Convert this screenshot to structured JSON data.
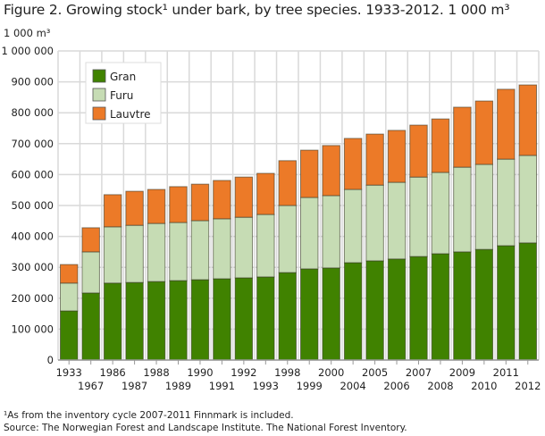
{
  "chart_data": {
    "type": "bar",
    "stacked": true,
    "title": "Figure 2. Growing stock¹ under bark, by tree species. 1933-2012. 1 000 m³",
    "ylabel": "1 000 m³",
    "xlabel": "",
    "ylim": [
      0,
      1000000
    ],
    "yticks": [
      0,
      100000,
      200000,
      300000,
      400000,
      500000,
      600000,
      700000,
      800000,
      900000,
      1000000
    ],
    "ytick_labels": [
      "0",
      "100 000",
      "200 000",
      "300 000",
      "400 000",
      "500 000",
      "600 000",
      "700 000",
      "800 000",
      "900 000",
      "1 000 000"
    ],
    "grid": true,
    "legend_position": "top-left",
    "categories": [
      "1933",
      "1967",
      "1986",
      "1987",
      "1988",
      "1989",
      "1990",
      "1991",
      "1992",
      "1993",
      "1998",
      "1999",
      "2000",
      "2004",
      "2005",
      "2006",
      "2007",
      "2008",
      "2009",
      "2010",
      "2011",
      "2012"
    ],
    "series": [
      {
        "name": "Gran",
        "color": "#408200",
        "values": [
          159000,
          217000,
          249000,
          251000,
          254000,
          257000,
          260000,
          263000,
          266000,
          269000,
          283000,
          295000,
          298000,
          315000,
          321000,
          327000,
          335000,
          344000,
          350000,
          358000,
          370000,
          379000
        ]
      },
      {
        "name": "Furu",
        "color": "#c6dcb4",
        "values": [
          90000,
          133000,
          182000,
          185000,
          188000,
          188000,
          191000,
          194000,
          196000,
          202000,
          217000,
          231000,
          234000,
          237000,
          245000,
          248000,
          257000,
          263000,
          274000,
          275000,
          280000,
          283000
        ]
      },
      {
        "name": "Lauvtre",
        "color": "#ec7a28",
        "values": [
          60000,
          78000,
          104000,
          110000,
          110000,
          116000,
          118000,
          124000,
          130000,
          133000,
          145000,
          153000,
          162000,
          165000,
          165000,
          168000,
          168000,
          173000,
          194000,
          205000,
          226000,
          228000
        ]
      }
    ]
  },
  "footnotes": [
    "¹As from the inventory cycle 2007-2011 Finnmark is included.",
    "Source: The Norwegian Forest and Landscape Institute. The National Forest Inventory."
  ]
}
